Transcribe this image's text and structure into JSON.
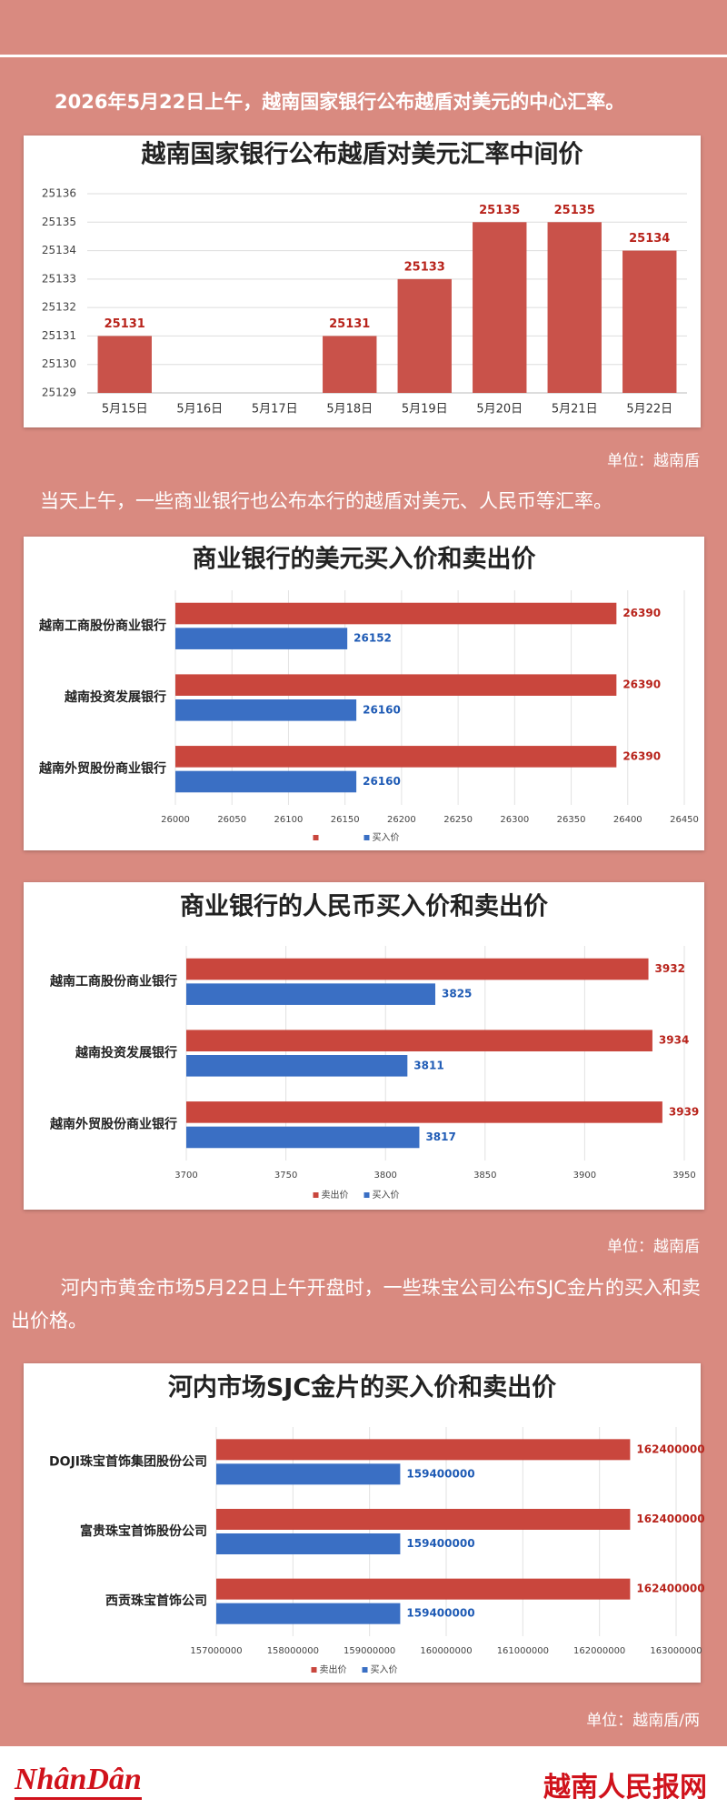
{
  "intro_1": "2026年5月22日上午，越南国家银行公布越盾对美元的中心汇率。",
  "unit_1": "单位：越南盾",
  "intro_2": "当天上午，一些商业银行也公布本行的越盾对美元、人民币等汇率。",
  "unit_2": "单位：越南盾",
  "intro_3": "河内市黄金市场5月22日上午开盘时，一些珠宝公司公布SJC金片的买入和卖出价格。",
  "unit_3": "单位：越南盾/两",
  "footer": {
    "logo": "NhânDân",
    "site": "越南人民报网"
  },
  "chart_data": [
    {
      "type": "bar",
      "title": "越南国家银行公布越盾对美元汇率中间价",
      "categories": [
        "5月15日",
        "5月16日",
        "5月17日",
        "5月18日",
        "5月19日",
        "5月20日",
        "5月21日",
        "5月22日"
      ],
      "values": [
        25131,
        null,
        null,
        25131,
        25133,
        25135,
        25135,
        25134
      ],
      "color": "#c9524a",
      "label_color": "#b8231b",
      "ylim": [
        25129,
        25136
      ],
      "yticks": [
        25129,
        25130,
        25131,
        25132,
        25133,
        25134,
        25135,
        25136
      ],
      "grid": true
    },
    {
      "type": "barh",
      "title": "商业银行的美元买入价和卖出价",
      "categories": [
        "越南工商股份商业银行",
        "越南投资发展银行",
        "越南外贸股份商业银行"
      ],
      "series": [
        {
          "name": null,
          "color": "#c9463d",
          "values": [
            26390,
            26390,
            26390
          ]
        },
        {
          "name": "买入价",
          "color": "#3a6fc4",
          "values": [
            26152,
            26160,
            26160
          ]
        }
      ],
      "xlim": [
        26000,
        26450
      ],
      "xticks": [
        26000,
        26050,
        26100,
        26150,
        26200,
        26250,
        26300,
        26350,
        26400,
        26450
      ],
      "grid": true,
      "legend": "bottom"
    },
    {
      "type": "barh",
      "title": "商业银行的人民币买入价和卖出价",
      "categories": [
        "越南工商股份商业银行",
        "越南投资发展银行",
        "越南外贸股份商业银行"
      ],
      "series": [
        {
          "name": "卖出价",
          "color": "#c9463d",
          "values": [
            3932,
            3934,
            3939
          ]
        },
        {
          "name": "买入价",
          "color": "#3a6fc4",
          "values": [
            3825,
            3811,
            3817
          ]
        }
      ],
      "xlim": [
        3700,
        3950
      ],
      "xticks": [
        3700,
        3750,
        3800,
        3850,
        3900,
        3950
      ],
      "grid": true,
      "legend": "bottom"
    },
    {
      "type": "barh",
      "title": "河内市场SJC金片的买入价和卖出价",
      "categories": [
        "DOJI珠宝首饰集团股份公司",
        "富贵珠宝首饰股份公司",
        "西贡珠宝首饰公司"
      ],
      "series": [
        {
          "name": "卖出价",
          "color": "#c9463d",
          "values": [
            162400000,
            162400000,
            162400000
          ]
        },
        {
          "name": "买入价",
          "color": "#3a6fc4",
          "values": [
            159400000,
            159400000,
            159400000
          ]
        }
      ],
      "xlim": [
        157000000,
        163000000
      ],
      "xticks": [
        157000000,
        158000000,
        159000000,
        160000000,
        161000000,
        162000000,
        163000000
      ],
      "grid": true,
      "legend": "bottom"
    }
  ]
}
